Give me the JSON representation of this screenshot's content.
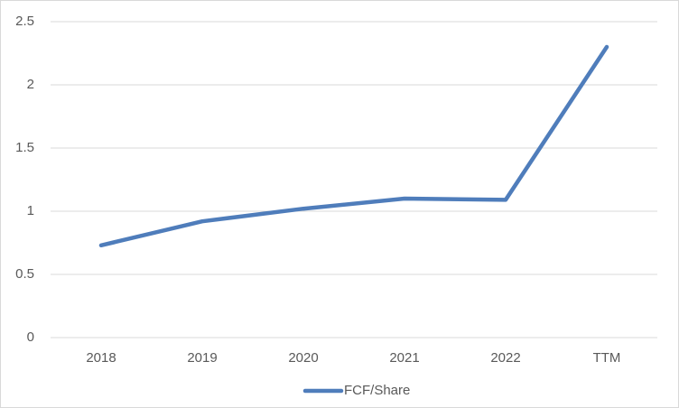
{
  "chart_data": {
    "type": "line",
    "categories": [
      "2018",
      "2019",
      "2020",
      "2021",
      "2022",
      "TTM"
    ],
    "series": [
      {
        "name": "FCF/Share",
        "color": "#4f7dbb",
        "values": [
          0.73,
          0.92,
          1.02,
          1.1,
          1.09,
          2.3
        ]
      }
    ],
    "ylim": [
      0,
      2.5
    ],
    "yticks": [
      0,
      0.5,
      1,
      1.5,
      2,
      2.5
    ],
    "grid": true,
    "legend": "bottom"
  }
}
